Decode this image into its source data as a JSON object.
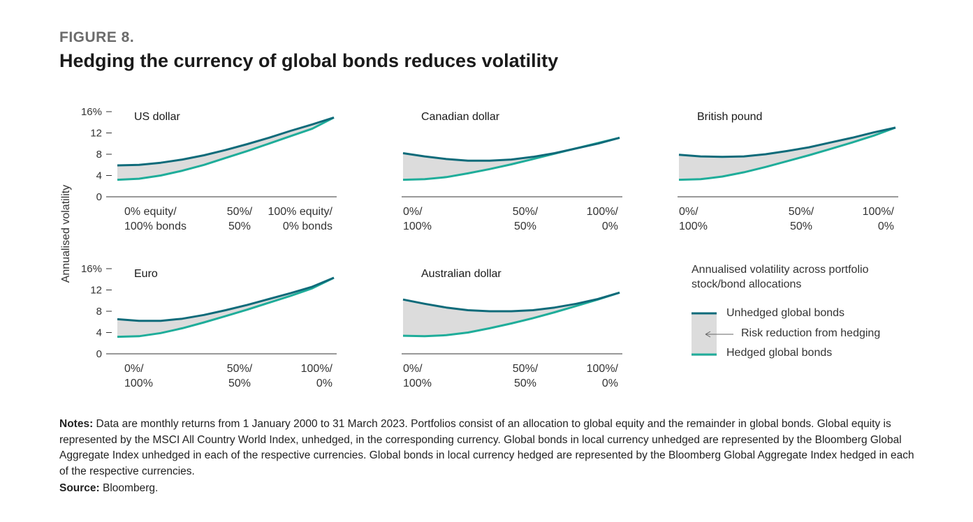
{
  "figure_label": "FIGURE 8.",
  "title": "Hedging the currency of global bonds reduces volatility",
  "y_axis_label": "Annualised volatility",
  "colors": {
    "unhedged": "#0f6b7a",
    "hedged": "#1fad9a",
    "fill": "#dcdcdc"
  },
  "chart_data": [
    {
      "type": "line",
      "title": "US dollar",
      "yticks": [
        "16%",
        "12",
        "8",
        "4",
        "0"
      ],
      "ylim": [
        0,
        16
      ],
      "xticks": [
        [
          "0% equity/",
          "100% bonds"
        ],
        [
          "50%/",
          "50%"
        ],
        [
          "100% equity/",
          "0% bonds"
        ]
      ],
      "x": [
        0,
        10,
        20,
        30,
        40,
        50,
        60,
        70,
        80,
        90,
        100
      ],
      "series": [
        {
          "name": "Unhedged global bonds",
          "values": [
            5.9,
            6.0,
            6.4,
            7.0,
            7.8,
            8.8,
            9.9,
            11.1,
            12.4,
            13.6,
            14.9
          ]
        },
        {
          "name": "Hedged global bonds",
          "values": [
            3.2,
            3.4,
            4.0,
            4.9,
            6.0,
            7.3,
            8.6,
            10.0,
            11.4,
            12.8,
            14.9
          ]
        }
      ]
    },
    {
      "type": "line",
      "title": "Canadian dollar",
      "ylim": [
        0,
        16
      ],
      "xticks": [
        [
          "0%/",
          "100%"
        ],
        [
          "50%/",
          "50%"
        ],
        [
          "100%/",
          "0%"
        ]
      ],
      "x": [
        0,
        10,
        20,
        30,
        40,
        50,
        60,
        70,
        80,
        90,
        100
      ],
      "series": [
        {
          "name": "Unhedged global bonds",
          "values": [
            8.2,
            7.6,
            7.1,
            6.8,
            6.8,
            7.0,
            7.5,
            8.2,
            9.1,
            10.0,
            11.1
          ]
        },
        {
          "name": "Hedged global bonds",
          "values": [
            3.2,
            3.3,
            3.7,
            4.4,
            5.2,
            6.1,
            7.1,
            8.1,
            9.1,
            10.1,
            11.1
          ]
        }
      ]
    },
    {
      "type": "line",
      "title": "British pound",
      "ylim": [
        0,
        16
      ],
      "xticks": [
        [
          "0%/",
          "100%"
        ],
        [
          "50%/",
          "50%"
        ],
        [
          "100%/",
          "0%"
        ]
      ],
      "x": [
        0,
        10,
        20,
        30,
        40,
        50,
        60,
        70,
        80,
        90,
        100
      ],
      "series": [
        {
          "name": "Unhedged global bonds",
          "values": [
            7.9,
            7.6,
            7.5,
            7.6,
            8.0,
            8.6,
            9.3,
            10.2,
            11.1,
            12.1,
            13.0
          ]
        },
        {
          "name": "Hedged global bonds",
          "values": [
            3.2,
            3.3,
            3.8,
            4.6,
            5.6,
            6.7,
            7.8,
            9.0,
            10.2,
            11.5,
            13.0
          ]
        }
      ]
    },
    {
      "type": "line",
      "title": "Euro",
      "yticks": [
        "16%",
        "12",
        "8",
        "4",
        "0"
      ],
      "ylim": [
        0,
        16
      ],
      "xticks": [
        [
          "0%/",
          "100%"
        ],
        [
          "50%/",
          "50%"
        ],
        [
          "100%/",
          "0%"
        ]
      ],
      "x": [
        0,
        10,
        20,
        30,
        40,
        50,
        60,
        70,
        80,
        90,
        100
      ],
      "series": [
        {
          "name": "Unhedged global bonds",
          "values": [
            6.5,
            6.2,
            6.2,
            6.6,
            7.3,
            8.2,
            9.2,
            10.3,
            11.4,
            12.6,
            14.3
          ]
        },
        {
          "name": "Hedged global bonds",
          "values": [
            3.2,
            3.3,
            3.9,
            4.8,
            5.9,
            7.1,
            8.3,
            9.6,
            10.9,
            12.3,
            14.3
          ]
        }
      ]
    },
    {
      "type": "line",
      "title": "Australian dollar",
      "ylim": [
        0,
        16
      ],
      "xticks": [
        [
          "0%/",
          "100%"
        ],
        [
          "50%/",
          "50%"
        ],
        [
          "100%/",
          "0%"
        ]
      ],
      "x": [
        0,
        10,
        20,
        30,
        40,
        50,
        60,
        70,
        80,
        90,
        100
      ],
      "series": [
        {
          "name": "Unhedged global bonds",
          "values": [
            10.2,
            9.4,
            8.7,
            8.2,
            8.0,
            8.0,
            8.2,
            8.7,
            9.4,
            10.3,
            11.5
          ]
        },
        {
          "name": "Hedged global bonds",
          "values": [
            3.4,
            3.3,
            3.5,
            4.0,
            4.8,
            5.7,
            6.7,
            7.8,
            9.0,
            10.2,
            11.5
          ]
        }
      ]
    }
  ],
  "legend": {
    "title": "Annualised volatility across portfolio stock/bond allocations",
    "unhedged": "Unhedged global bonds",
    "risk": "Risk reduction from hedging",
    "hedged": "Hedged global bonds"
  },
  "notes_label": "Notes:",
  "notes_text": " Data are monthly returns from 1 January 2000 to 31 March 2023. Portfolios consist of an allocation to global equity and the remainder in global bonds. Global equity is represented by the MSCI All Country World Index, unhedged, in the corresponding currency. Global bonds in local currency unhedged are represented by the Bloomberg Global Aggregate Index unhedged in each of the respective currencies. Global bonds in local currency hedged are represented by the Bloomberg Global Aggregate Index hedged in each of the respective currencies.",
  "source_label": "Source:",
  "source_text": " Bloomberg."
}
